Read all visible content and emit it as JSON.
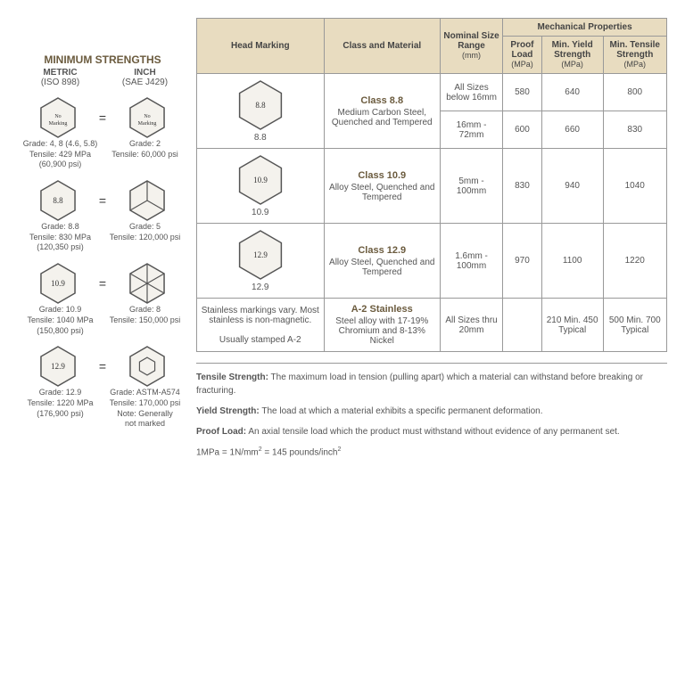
{
  "left": {
    "title": "MINIMUM STRENGTHS",
    "metric_header": "METRIC",
    "metric_sub": "(ISO 898)",
    "inch_header": "INCH",
    "inch_sub": "(SAE J429)",
    "rows": [
      {
        "metric_mark": "No\nMarking",
        "inch_mark": "No\nMarking",
        "metric_grade": "Grade: 4, 8 (4.6, 5.8)",
        "metric_tensile": "Tensile: 429 MPa",
        "metric_psi": "(60,900 psi)",
        "inch_grade": "Grade: 2",
        "inch_tensile": "Tensile: 60,000 psi",
        "inch_psi": "",
        "inch_radials": 0
      },
      {
        "metric_mark": "8.8",
        "inch_mark": "",
        "metric_grade": "Grade: 8.8",
        "metric_tensile": "Tensile: 830 MPa",
        "metric_psi": "(120,350 psi)",
        "inch_grade": "Grade: 5",
        "inch_tensile": "Tensile: 120,000 psi",
        "inch_psi": "",
        "inch_radials": 3
      },
      {
        "metric_mark": "10.9",
        "inch_mark": "",
        "metric_grade": "Grade: 10.9",
        "metric_tensile": "Tensile: 1040 MPa",
        "metric_psi": "(150,800 psi)",
        "inch_grade": "Grade: 8",
        "inch_tensile": "Tensile: 150,000 psi",
        "inch_psi": "",
        "inch_radials": 6
      },
      {
        "metric_mark": "12.9",
        "inch_mark": "",
        "metric_grade": "Grade: 12.9",
        "metric_tensile": "Tensile: 1220 MPa",
        "metric_psi": "(176,900 psi)",
        "inch_grade": "Grade: ASTM-A574",
        "inch_tensile": "Tensile: 170,000 psi",
        "inch_psi": "Note: Generally\nnot marked",
        "inch_radials": -1
      }
    ]
  },
  "table": {
    "headers": {
      "head_marking": "Head Marking",
      "class_material": "Class and Material",
      "nominal": "Nominal Size Range",
      "nominal_unit": "(mm)",
      "mech_group": "Mechanical Properties",
      "proof": "Proof Load",
      "proof_unit": "(MPa)",
      "yield": "Min. Yield Strength",
      "yield_unit": "(MPa)",
      "tensile": "Min. Tensile Strength",
      "tensile_unit": "(MPa)"
    },
    "rows": [
      {
        "marking": "8.8",
        "marking_label": "8.8",
        "class_name": "Class 8.8",
        "material": "Medium Carbon Steel, Quenched and Tempered",
        "sizes": [
          {
            "range": "All Sizes below 16mm",
            "proof": "580",
            "yield": "640",
            "tensile": "800"
          },
          {
            "range": "16mm - 72mm",
            "proof": "600",
            "yield": "660",
            "tensile": "830"
          }
        ]
      },
      {
        "marking": "10.9",
        "marking_label": "10.9",
        "class_name": "Class 10.9",
        "material": "Alloy Steel, Quenched and Tempered",
        "sizes": [
          {
            "range": "5mm - 100mm",
            "proof": "830",
            "yield": "940",
            "tensile": "1040"
          }
        ]
      },
      {
        "marking": "12.9",
        "marking_label": "12.9",
        "class_name": "Class 12.9",
        "material": "Alloy Steel, Quenched and Tempered",
        "sizes": [
          {
            "range": "1.6mm - 100mm",
            "proof": "970",
            "yield": "1100",
            "tensile": "1220"
          }
        ]
      },
      {
        "marking_text": "Stainless markings vary. Most stainless is non-magnetic.\n\nUsually stamped A-2",
        "class_name": "A-2 Stainless",
        "material": "Steel alloy with 17-19% Chromium and 8-13% Nickel",
        "sizes": [
          {
            "range": "All Sizes thru 20mm",
            "proof": "",
            "yield": "210 Min. 450 Typical",
            "tensile": "500 Min. 700 Typical"
          }
        ]
      }
    ]
  },
  "defs": {
    "tensile_term": "Tensile Strength:",
    "tensile_def": " The maximum load in tension (pulling apart) which a material can withstand before breaking or fracturing.",
    "yield_term": "Yield Strength:",
    "yield_def": " The load at which a material exhibits a specific permanent deformation.",
    "proof_term": "Proof Load:",
    "proof_def": " An axial tensile load which the product must withstand without evidence of any permanent set.",
    "conversion": "1MPa = 1N/mm² = 145 pounds/inch²"
  }
}
